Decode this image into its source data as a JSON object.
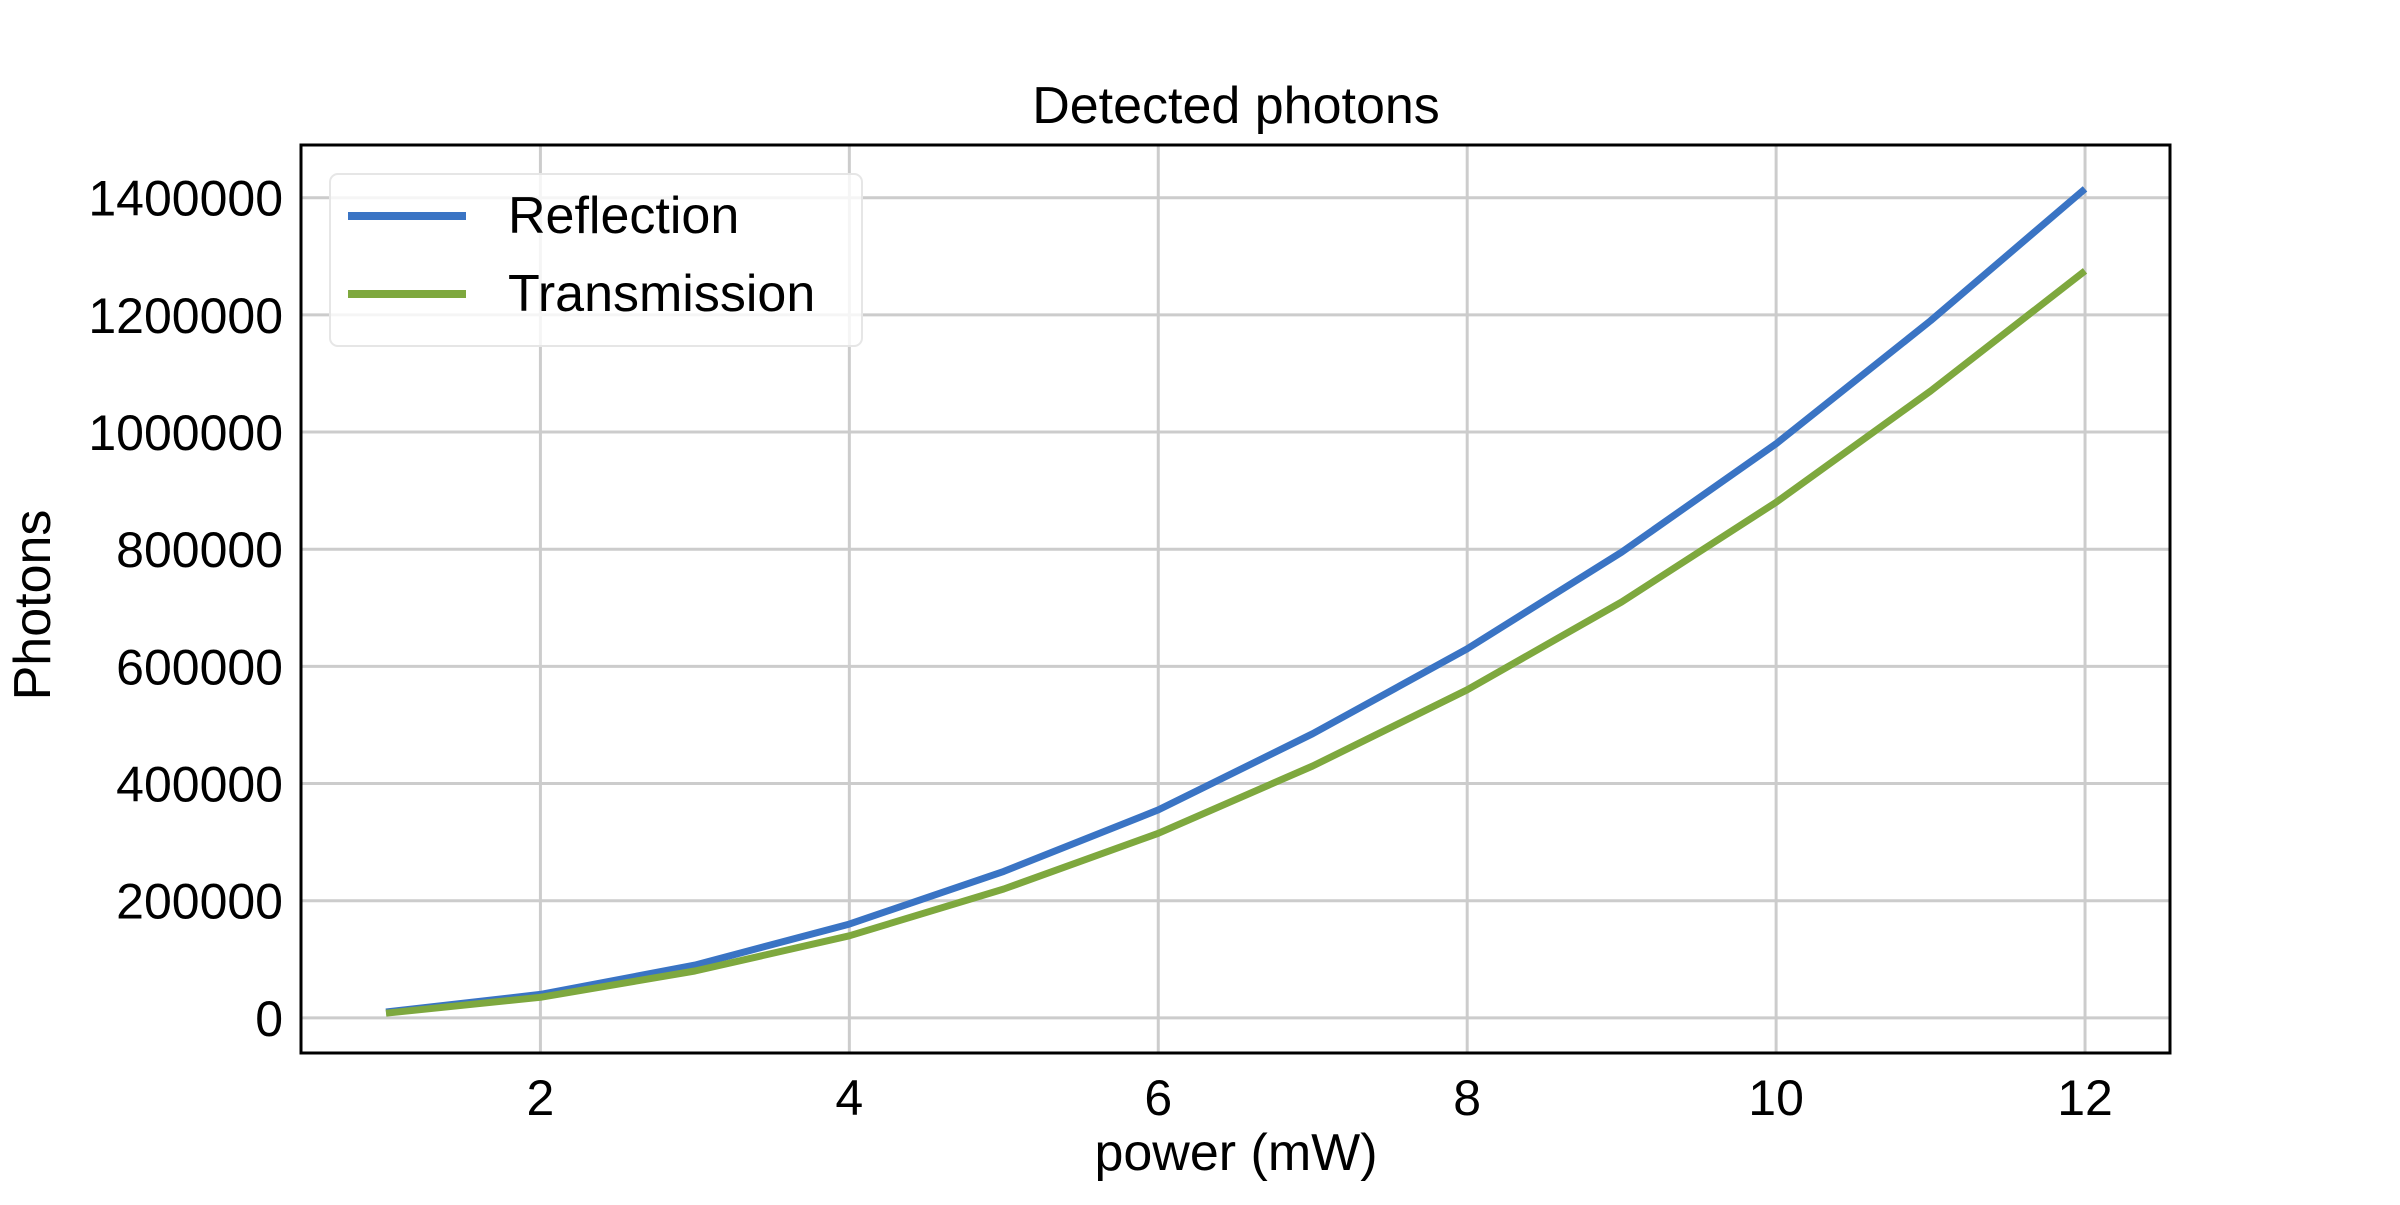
{
  "chart_data": {
    "type": "line",
    "title": "Detected photons",
    "xlabel": "power (mW)",
    "ylabel": "Photons",
    "xlim": [
      0.45,
      12.55
    ],
    "ylim": [
      -60000,
      1490000
    ],
    "x_ticks": [
      2,
      4,
      6,
      8,
      10,
      12
    ],
    "x_tick_labels": [
      "2",
      "4",
      "6",
      "8",
      "10",
      "12"
    ],
    "y_ticks": [
      0,
      200000,
      400000,
      600000,
      800000,
      1000000,
      1200000,
      1400000
    ],
    "y_tick_labels": [
      "0",
      "200000",
      "400000",
      "600000",
      "800000",
      "1000000",
      "1200000",
      "1400000"
    ],
    "grid": true,
    "legend_position": "top-left",
    "series": [
      {
        "name": "Reflection",
        "color": "#3a74c4",
        "x": [
          1,
          2,
          3,
          4,
          5,
          6,
          7,
          8,
          9,
          10,
          11,
          12
        ],
        "y": [
          10000,
          40000,
          90000,
          160000,
          250000,
          355000,
          485000,
          630000,
          795000,
          980000,
          1190000,
          1415000
        ]
      },
      {
        "name": "Transmission",
        "color": "#7ea83e",
        "x": [
          1,
          2,
          3,
          4,
          5,
          6,
          7,
          8,
          9,
          10,
          11,
          12
        ],
        "y": [
          8000,
          35000,
          80000,
          140000,
          220000,
          315000,
          430000,
          560000,
          710000,
          880000,
          1070000,
          1275000
        ]
      }
    ]
  }
}
